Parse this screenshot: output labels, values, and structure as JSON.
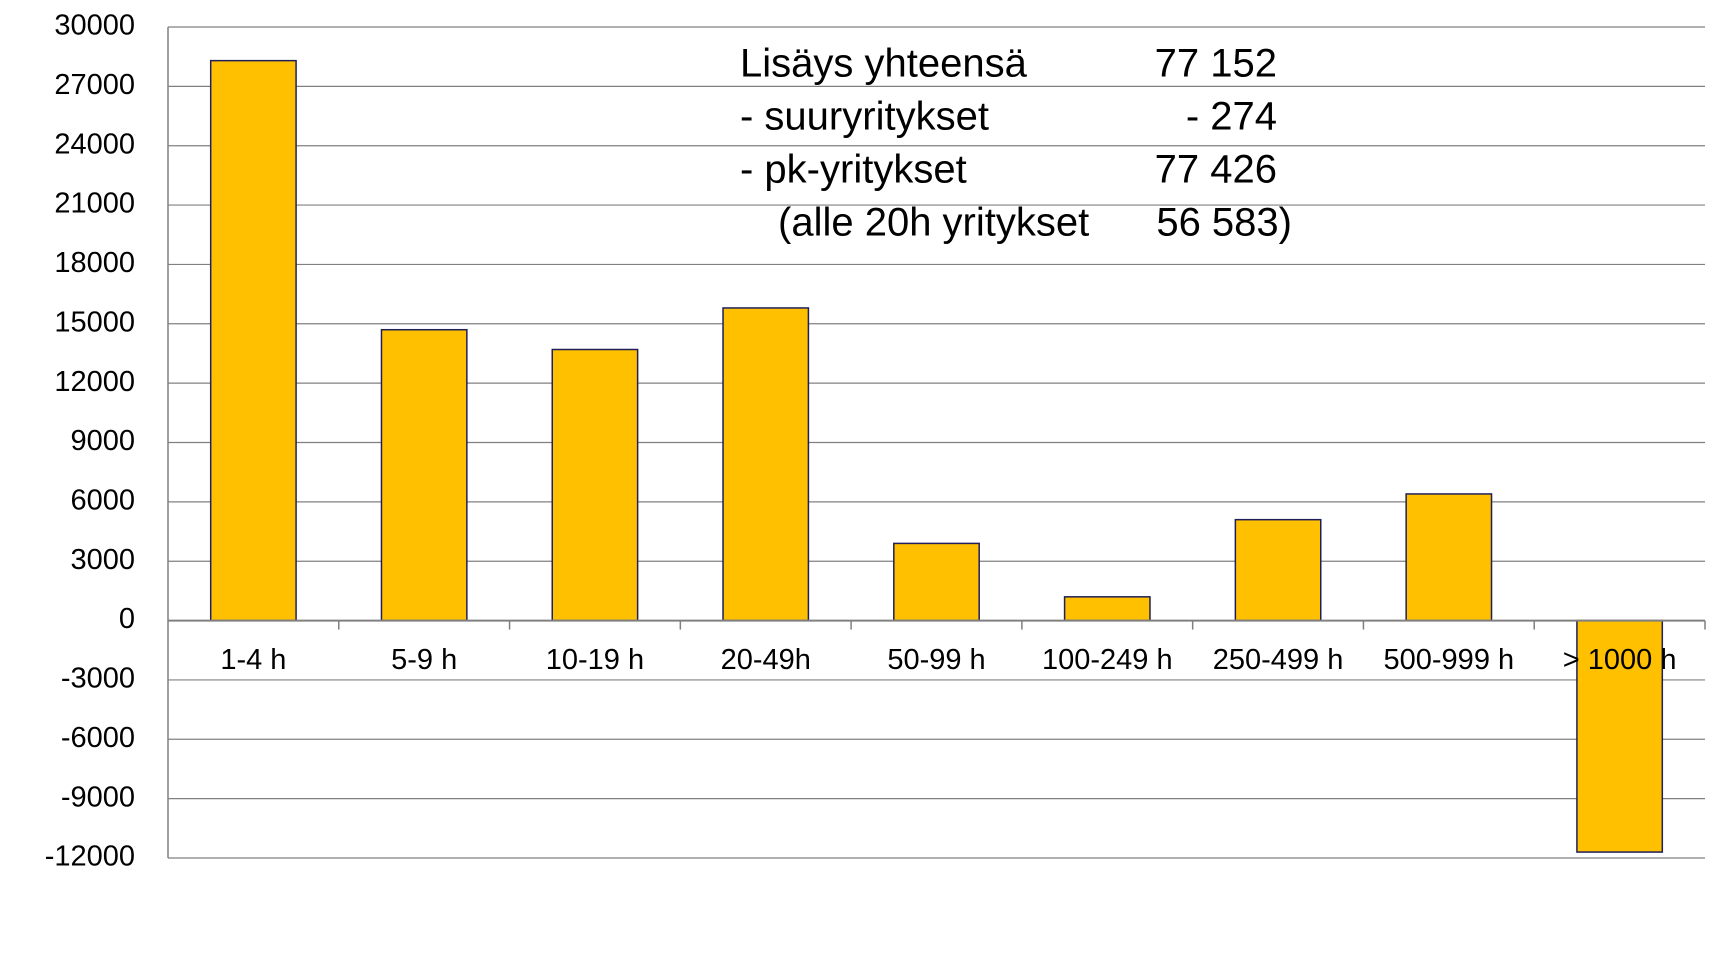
{
  "chart_data": {
    "type": "bar",
    "categories": [
      "1-4 h",
      "5-9 h",
      "10-19 h",
      "20-49h",
      "50-99 h",
      "100-249 h",
      "250-499 h",
      "500-999 h",
      "> 1000 h"
    ],
    "values": [
      28300,
      14700,
      13700,
      15800,
      3900,
      1200,
      5100,
      6400,
      -11700
    ],
    "color": "#ffc000",
    "ylim": [
      -12000,
      30000
    ],
    "yticks": [
      -12000,
      -9000,
      -6000,
      -3000,
      0,
      3000,
      6000,
      9000,
      12000,
      15000,
      18000,
      21000,
      24000,
      27000,
      30000
    ],
    "grid": true,
    "annotations": [
      {
        "label": "Lisäys yhteensä",
        "value": "77 152"
      },
      {
        "label": "-  suuryritykset",
        "value": "- 274"
      },
      {
        "label": "-  pk-yritykset",
        "value": "77 426"
      },
      {
        "label": "(alle 20h yritykset",
        "value": "56 583)"
      }
    ]
  }
}
